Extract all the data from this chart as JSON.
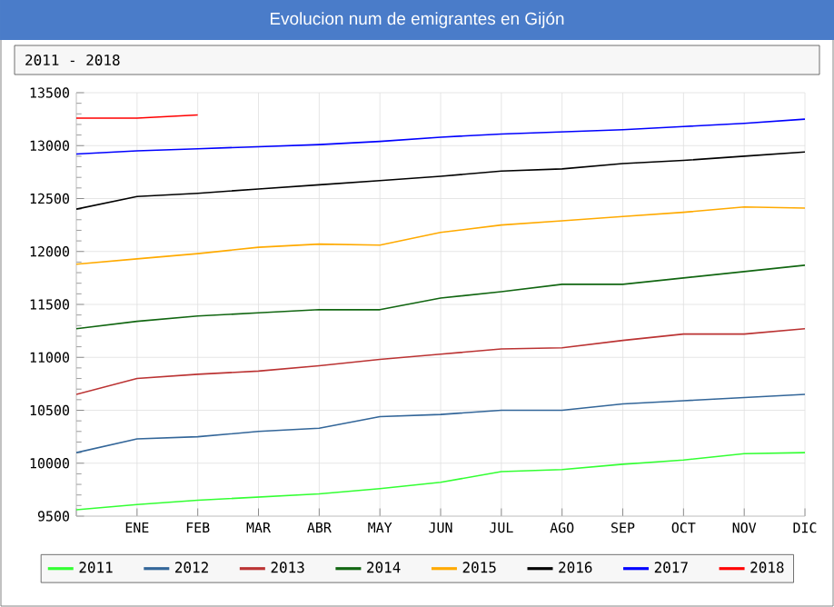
{
  "chart_data": {
    "type": "line",
    "title": "Evolucion num de emigrantes en Gijón",
    "subtitle": "2011 - 2018",
    "categories": [
      null,
      "ENE",
      "FEB",
      "MAR",
      "ABR",
      "MAY",
      "JUN",
      "JUL",
      "AGO",
      "SEP",
      "OCT",
      "NOV",
      "DIC"
    ],
    "series": [
      {
        "name": "2011",
        "color": "#33ff33",
        "values": [
          9560,
          9610,
          9650,
          9680,
          9710,
          9760,
          9820,
          9920,
          9940,
          9990,
          10030,
          10090,
          10100
        ]
      },
      {
        "name": "2012",
        "color": "#336699",
        "values": [
          10100,
          10230,
          10250,
          10300,
          10330,
          10440,
          10460,
          10500,
          10500,
          10560,
          10590,
          10620,
          10650
        ]
      },
      {
        "name": "2013",
        "color": "#bb3333",
        "values": [
          10650,
          10800,
          10840,
          10870,
          10920,
          10980,
          11030,
          11080,
          11090,
          11160,
          11220,
          11220,
          11270
        ]
      },
      {
        "name": "2014",
        "color": "#116611",
        "values": [
          11270,
          11340,
          11390,
          11420,
          11450,
          11450,
          11560,
          11620,
          11690,
          11690,
          11750,
          11810,
          11870
        ]
      },
      {
        "name": "2015",
        "color": "#ffaa00",
        "values": [
          11880,
          11930,
          11980,
          12040,
          12070,
          12060,
          12180,
          12250,
          12290,
          12330,
          12370,
          12420,
          12410
        ]
      },
      {
        "name": "2016",
        "color": "#000000",
        "values": [
          12400,
          12520,
          12550,
          12590,
          12630,
          12670,
          12710,
          12760,
          12780,
          12830,
          12860,
          12900,
          12940
        ]
      },
      {
        "name": "2017",
        "color": "#0000ff",
        "values": [
          12920,
          12950,
          12970,
          12990,
          13010,
          13040,
          13080,
          13110,
          13130,
          13150,
          13180,
          13210,
          13250
        ]
      },
      {
        "name": "2018",
        "color": "#ff0000",
        "values": [
          13260,
          13260,
          13290,
          null,
          null,
          null,
          null,
          null,
          null,
          null,
          null,
          null,
          null
        ]
      }
    ],
    "ylim": [
      9500,
      13500
    ],
    "yticks": [
      9500,
      10000,
      10500,
      11000,
      11500,
      12000,
      12500,
      13000,
      13500
    ],
    "grid": true,
    "legend": "bottom",
    "marker": "none",
    "line_style": "solid"
  }
}
